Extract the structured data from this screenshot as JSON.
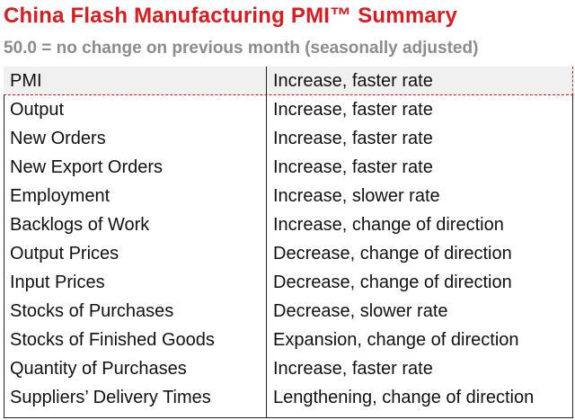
{
  "header": {
    "title": "China Flash Manufacturing PMI™ Summary",
    "subtitle": "50.0 = no change on previous month (seasonally adjusted)"
  },
  "table": {
    "rows": [
      {
        "indicator": "PMI",
        "status": "Increase, faster rate"
      },
      {
        "indicator": "Output",
        "status": "Increase, faster rate"
      },
      {
        "indicator": "New Orders",
        "status": "Increase, faster rate"
      },
      {
        "indicator": "New Export Orders",
        "status": "Increase, faster rate"
      },
      {
        "indicator": "Employment",
        "status": "Increase, slower rate"
      },
      {
        "indicator": "Backlogs of Work",
        "status": "Increase, change of direction"
      },
      {
        "indicator": "Output Prices",
        "status": "Decrease, change of direction"
      },
      {
        "indicator": "Input Prices",
        "status": "Decrease, change of direction"
      },
      {
        "indicator": "Stocks of Purchases",
        "status": "Decrease, slower rate"
      },
      {
        "indicator": "Stocks of Finished Goods",
        "status": "Expansion, change of direction"
      },
      {
        "indicator": "Quantity of Purchases",
        "status": "Increase, faster rate"
      },
      {
        "indicator": "Suppliers’ Delivery Times",
        "status": "Lengthening, change of direction"
      }
    ]
  },
  "colors": {
    "title": "#e0191e",
    "subtitle": "#8c8c8c",
    "highlight_row": "#f0f0f0",
    "highlight_border": "#e0191e"
  }
}
